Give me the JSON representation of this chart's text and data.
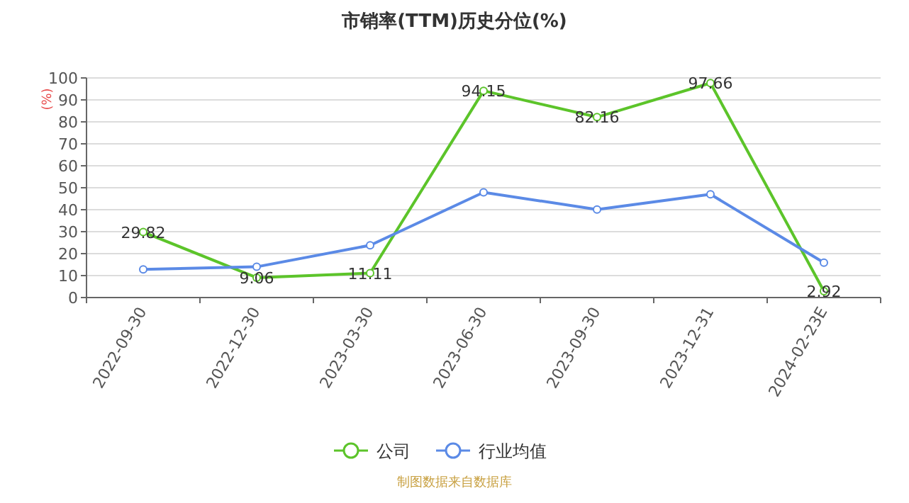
{
  "chart_data": {
    "type": "line",
    "title": "市销率(TTM)历史分位(%)",
    "ylabel": "(%)",
    "categories": [
      "2022-09-30",
      "2022-12-30",
      "2023-03-30",
      "2023-06-30",
      "2023-09-30",
      "2023-12-31",
      "2024-02-23E"
    ],
    "series": [
      {
        "name": "公司",
        "color": "#5cc42a",
        "values": [
          29.82,
          9.06,
          11.11,
          94.15,
          82.16,
          97.66,
          2.92
        ],
        "data_labels": true
      },
      {
        "name": "行业均值",
        "color": "#5b8ae6",
        "values": [
          12.8,
          14,
          23.8,
          47.9,
          40.1,
          47,
          15.9
        ]
      }
    ],
    "ylim": [
      0,
      100
    ],
    "yticks": [
      0,
      10,
      20,
      30,
      40,
      50,
      60,
      70,
      80,
      90,
      100
    ],
    "grid": "y",
    "legend": "bottom",
    "marker": "circle",
    "line_style": "solid",
    "annotations": [
      "制图数据来自数据库"
    ]
  }
}
